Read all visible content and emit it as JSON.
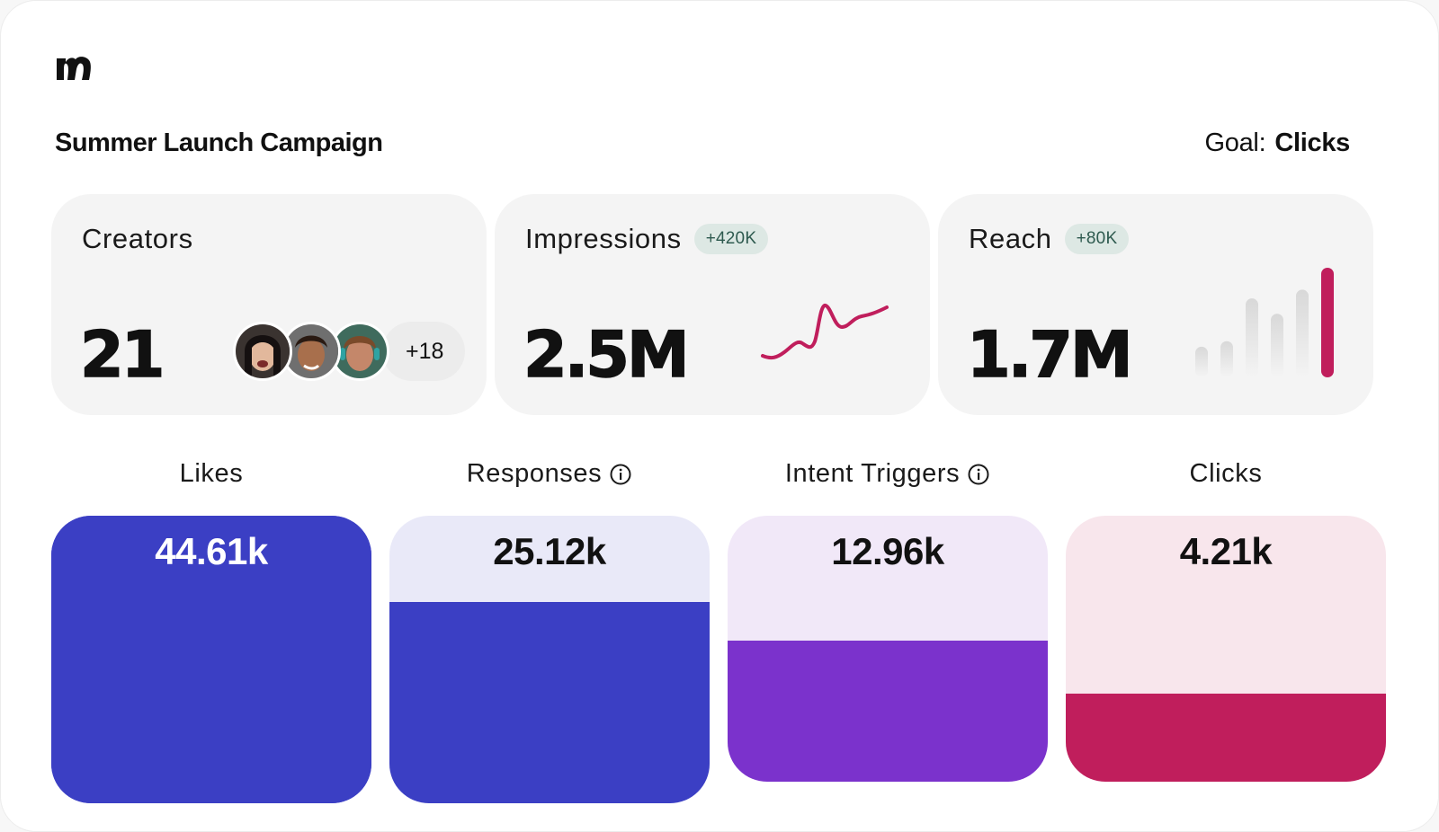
{
  "brand": {
    "logo_icon": "m-logo-icon"
  },
  "header": {
    "title": "Summer Launch Campaign",
    "goal_label": "Goal:",
    "goal_value": "Clicks"
  },
  "creators": {
    "label": "Creators",
    "value": "21",
    "more": "+18",
    "avatars": [
      "creator-avatar-1",
      "creator-avatar-2",
      "creator-avatar-3"
    ]
  },
  "impressions": {
    "label": "Impressions",
    "delta": "+420K",
    "value": "2.5M",
    "trend_color": "#c01e5c"
  },
  "reach": {
    "label": "Reach",
    "delta": "+80K",
    "value": "1.7M",
    "bar_levels": [
      0.28,
      0.33,
      0.72,
      0.58,
      0.8,
      1.0
    ],
    "highlight_color": "#c01e5c"
  },
  "funnel": [
    {
      "label": "Likes",
      "value": "44.61k",
      "info": false,
      "fill_fraction": 1.0,
      "bg": "#3b3fc4",
      "fill": "#3b3fc4",
      "text_color": "#ffffff"
    },
    {
      "label": "Responses",
      "value": "25.12k",
      "info": true,
      "fill_fraction": 0.7,
      "bg": "#e9e9f8",
      "fill": "#3b3fc4",
      "text_color": "#111111"
    },
    {
      "label": "Intent Triggers",
      "value": "12.96k",
      "info": true,
      "fill_fraction": 0.53,
      "bg": "#f1e8f8",
      "fill": "#7b32cc",
      "text_color": "#111111"
    },
    {
      "label": "Clicks",
      "value": "4.21k",
      "info": false,
      "fill_fraction": 0.33,
      "bg": "#f8e6ec",
      "fill": "#c01e5c",
      "text_color": "#111111"
    }
  ]
}
